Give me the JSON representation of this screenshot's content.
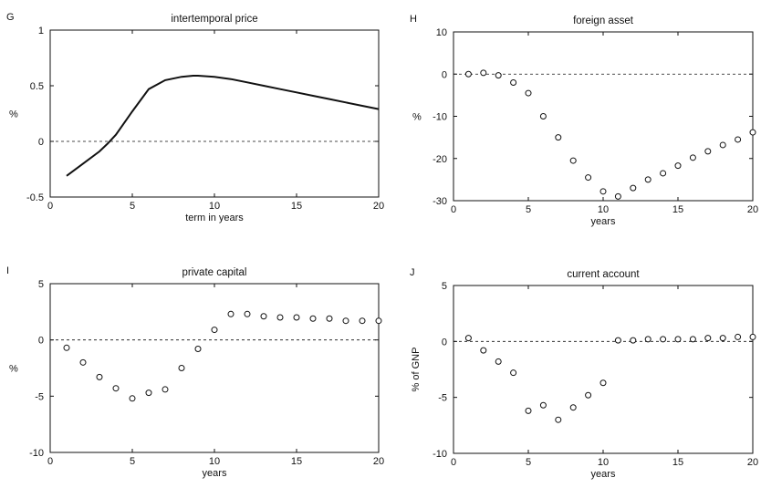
{
  "chart_data": [
    {
      "letter": "G",
      "type": "line",
      "title": "intertemporal price",
      "xlabel": "term in years",
      "ylabel": "%",
      "xlim": [
        0,
        20
      ],
      "ylim": [
        -0.5,
        1
      ],
      "xticks": [
        0,
        5,
        10,
        15,
        20
      ],
      "yticks": [
        -0.5,
        0,
        0.5,
        1
      ],
      "ytick_labels": [
        "-0.5",
        "0",
        "0.5",
        "1"
      ],
      "zero_line": true,
      "x": [
        1,
        2,
        3,
        3.5,
        4,
        5,
        6,
        7,
        8,
        8.7,
        9,
        10,
        11,
        12,
        13,
        14,
        15,
        16,
        17,
        18,
        19,
        20
      ],
      "y": [
        -0.31,
        -0.2,
        -0.09,
        -0.02,
        0.06,
        0.27,
        0.47,
        0.55,
        0.58,
        0.59,
        0.59,
        0.58,
        0.56,
        0.53,
        0.5,
        0.47,
        0.44,
        0.41,
        0.38,
        0.35,
        0.32,
        0.29
      ]
    },
    {
      "letter": "H",
      "type": "scatter",
      "title": "foreign asset",
      "xlabel": "years",
      "ylabel": "%",
      "xlim": [
        0,
        20
      ],
      "ylim": [
        -30,
        10
      ],
      "xticks": [
        0,
        5,
        10,
        15,
        20
      ],
      "yticks": [
        -30,
        -20,
        -10,
        0,
        10
      ],
      "ytick_labels": [
        "-30",
        "-20",
        "-10",
        "0",
        "10"
      ],
      "zero_line": true,
      "x": [
        1,
        2,
        3,
        4,
        5,
        6,
        7,
        8,
        9,
        10,
        11,
        12,
        13,
        14,
        15,
        16,
        17,
        18,
        19,
        20
      ],
      "y": [
        0,
        0.3,
        -0.3,
        -2,
        -4.5,
        -10,
        -15,
        -20.5,
        -24.5,
        -27.8,
        -29,
        -27,
        -25,
        -23.5,
        -21.7,
        -19.8,
        -18.3,
        -16.8,
        -15.5,
        -13.8
      ]
    },
    {
      "letter": "I",
      "type": "scatter",
      "title": "private capital",
      "xlabel": "years",
      "ylabel": "%",
      "xlim": [
        0,
        20
      ],
      "ylim": [
        -10,
        5
      ],
      "xticks": [
        0,
        5,
        10,
        15,
        20
      ],
      "yticks": [
        -10,
        -5,
        0,
        5
      ],
      "ytick_labels": [
        "-10",
        "-5",
        "0",
        "5"
      ],
      "zero_line": true,
      "x": [
        1,
        2,
        3,
        4,
        5,
        6,
        7,
        8,
        9,
        10,
        11,
        12,
        13,
        14,
        15,
        16,
        17,
        18,
        19,
        20
      ],
      "y": [
        -0.7,
        -2,
        -3.3,
        -4.3,
        -5.2,
        -4.7,
        -4.4,
        -2.5,
        -0.8,
        0.9,
        2.3,
        2.3,
        2.1,
        2,
        2,
        1.9,
        1.9,
        1.7,
        1.7,
        1.7
      ]
    },
    {
      "letter": "J",
      "type": "scatter",
      "title": "current account",
      "xlabel": "years",
      "ylabel": "% of GNP",
      "xlim": [
        0,
        20
      ],
      "ylim": [
        -10,
        5
      ],
      "xticks": [
        0,
        5,
        10,
        15,
        20
      ],
      "yticks": [
        -10,
        -5,
        0,
        5
      ],
      "ytick_labels": [
        "-10",
        "-5",
        "0",
        "5"
      ],
      "zero_line": true,
      "x": [
        1,
        2,
        3,
        4,
        5,
        6,
        7,
        8,
        9,
        10,
        11,
        12,
        13,
        14,
        15,
        16,
        17,
        18,
        19,
        20
      ],
      "y": [
        0.3,
        -0.8,
        -1.8,
        -2.8,
        -6.2,
        -5.7,
        -7,
        -5.9,
        -4.8,
        -3.7,
        0.1,
        0.1,
        0.2,
        0.2,
        0.2,
        0.2,
        0.3,
        0.3,
        0.4,
        0.4
      ]
    }
  ]
}
